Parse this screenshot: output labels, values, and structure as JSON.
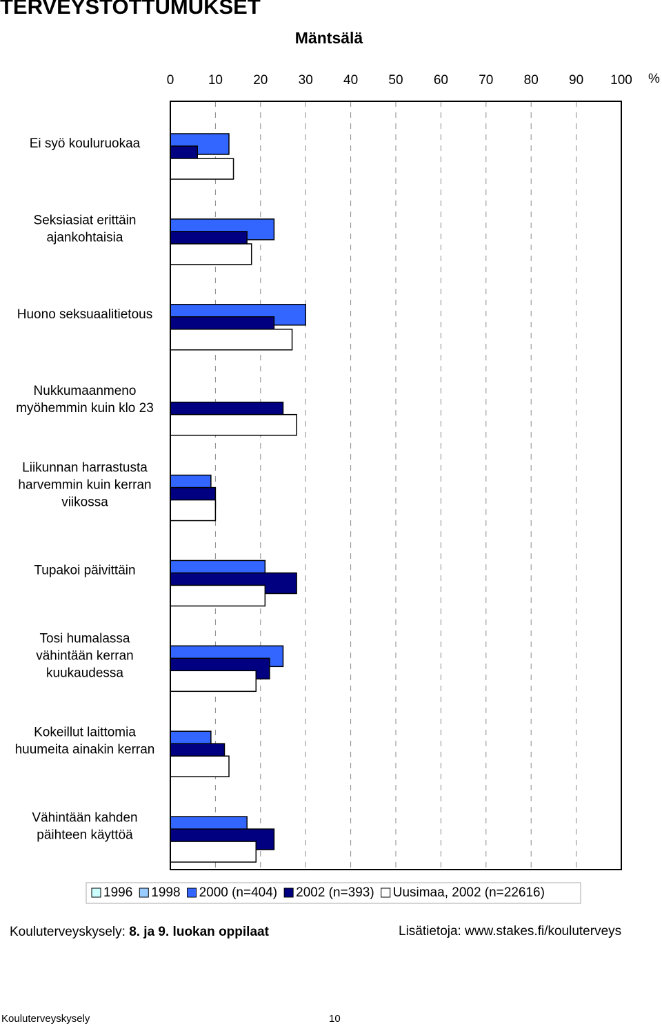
{
  "page": {
    "heading": "TERVEYSTOTTUMUKSET",
    "footer_left": "Kouluterveyskysely:",
    "footer_left_bold": "8. ja 9. luokan oppilaat",
    "footer_right": "Lisätietoja: www.stakes.fi/kouluterveys",
    "page_footer": "Kouluterveyskysely",
    "page_number": "10"
  },
  "chart_data": {
    "type": "hbar",
    "title": "Mäntsälä",
    "xlabel": "%",
    "categories": [
      [
        "Ei syö kouluruokaa"
      ],
      [
        "Seksiasiat erittäin",
        "ajankohtaisia"
      ],
      [
        "Huono seksuaalitietous"
      ],
      [
        "Nukkumaanmeno",
        "myöhemmin kuin klo 23"
      ],
      [
        "Liikunnan harrastusta",
        "harvemmin kuin kerran",
        "viikossa"
      ],
      [
        "Tupakoi päivittäin"
      ],
      [
        "Tosi humalassa",
        "vähintään kerran",
        "kuukaudessa"
      ],
      [
        "Kokeillut laittomia",
        "huumeita ainakin kerran"
      ],
      [
        "Vähintään kahden",
        "päihteen käyttöä"
      ]
    ],
    "series": [
      {
        "name": "1996",
        "color": "#ccffff",
        "values": [
          null,
          null,
          null,
          null,
          null,
          null,
          null,
          null,
          null
        ]
      },
      {
        "name": "1998",
        "color": "#99ccff",
        "values": [
          null,
          null,
          null,
          null,
          null,
          null,
          null,
          null,
          null
        ]
      },
      {
        "name": "2000 (n=404)",
        "color": "#3366ff",
        "values": [
          13,
          23,
          30,
          null,
          9,
          21,
          25,
          9,
          17
        ]
      },
      {
        "name": "2002 (n=393)",
        "color": "#000080",
        "values": [
          6,
          17,
          23,
          25,
          10,
          28,
          22,
          12,
          23
        ]
      },
      {
        "name": "Uusimaa, 2002 (n=22616)",
        "color": "#ffffff",
        "values": [
          14,
          18,
          27,
          28,
          10,
          21,
          19,
          13,
          19
        ]
      }
    ],
    "xlim": [
      0,
      100
    ],
    "xticks": [
      0,
      10,
      20,
      30,
      40,
      50,
      60,
      70,
      80,
      90,
      100
    ],
    "grid": true
  }
}
